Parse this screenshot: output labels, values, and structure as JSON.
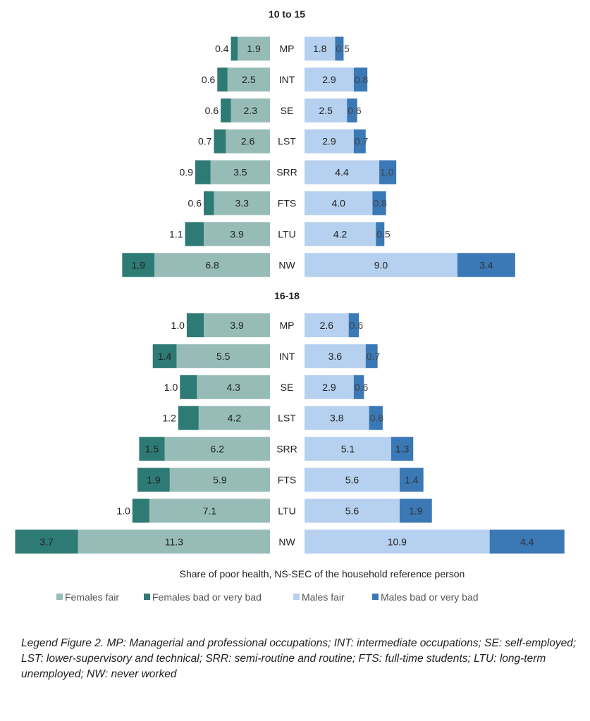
{
  "chart_data": {
    "type": "bar",
    "orientation": "horizontal-population-pyramid",
    "xlabel": "Share of poor health, NS-SEC of the household reference person",
    "categories": [
      "MP",
      "INT",
      "SE",
      "LST",
      "SRR",
      "FTS",
      "LTU",
      "NW"
    ],
    "legend": {
      "position": "bottom",
      "items": [
        {
          "label": "Females fair",
          "color": "#97bcb8"
        },
        {
          "label": "Females bad or very bad",
          "color": "#2e7a74"
        },
        {
          "label": "Males fair",
          "color": "#b6d0ef"
        },
        {
          "label": "Males bad or very bad",
          "color": "#3a78b6"
        }
      ]
    },
    "panels": [
      {
        "title": "10 to 15",
        "series": [
          {
            "name": "Females fair",
            "values": [
              1.9,
              2.5,
              2.3,
              2.6,
              3.5,
              3.3,
              3.9,
              6.8
            ]
          },
          {
            "name": "Females bad or very bad",
            "values": [
              0.4,
              0.6,
              0.6,
              0.7,
              0.9,
              0.6,
              1.1,
              1.9
            ]
          },
          {
            "name": "Males fair",
            "values": [
              1.8,
              2.9,
              2.5,
              2.9,
              4.4,
              4.0,
              4.2,
              9.0
            ]
          },
          {
            "name": "Males bad or very bad",
            "values": [
              0.5,
              0.8,
              0.6,
              0.7,
              1.0,
              0.8,
              0.5,
              3.4
            ]
          }
        ]
      },
      {
        "title": "16-18",
        "series": [
          {
            "name": "Females fair",
            "values": [
              3.9,
              5.5,
              4.3,
              4.2,
              6.2,
              5.9,
              7.1,
              11.3
            ]
          },
          {
            "name": "Females bad or very bad",
            "values": [
              1.0,
              1.4,
              1.0,
              1.2,
              1.5,
              1.9,
              1.0,
              3.7
            ]
          },
          {
            "name": "Males fair",
            "values": [
              2.6,
              3.6,
              2.9,
              3.8,
              5.1,
              5.6,
              5.6,
              10.9
            ]
          },
          {
            "name": "Males bad or very bad",
            "values": [
              0.6,
              0.7,
              0.6,
              0.8,
              1.3,
              1.4,
              1.9,
              4.4
            ]
          }
        ]
      }
    ]
  },
  "caption": "Legend Figure 2. MP: Managerial and professional occupations; INT: intermediate occupations; SE: self-employed; LST: lower-supervisory and technical; SRR: semi-routine and routine; FTS: full-time students; LTU: long-term unemployed; NW: never worked"
}
